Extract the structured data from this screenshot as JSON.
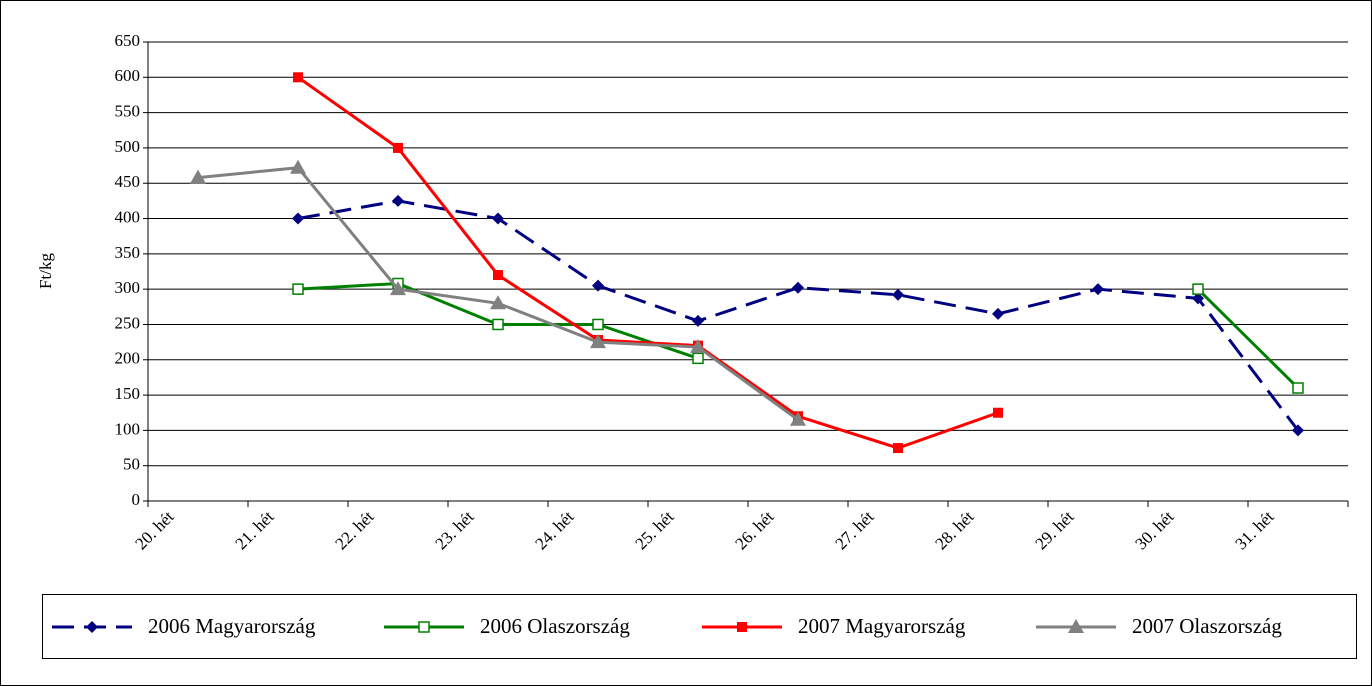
{
  "chart_data": {
    "type": "line",
    "y_label": "Ft/kg",
    "categories": [
      "20. hét",
      "21. hét",
      "22. hét",
      "23. hét",
      "24. hét",
      "25. hét",
      "26. hét",
      "27. hét",
      "28. hét",
      "29. hét",
      "30. hét",
      "31. hét"
    ],
    "series": [
      {
        "name": "2006 Magyarország",
        "color": "#000080",
        "dash": true,
        "marker": "diamond",
        "values": [
          null,
          400,
          425,
          400,
          305,
          255,
          302,
          292,
          265,
          300,
          287,
          100
        ]
      },
      {
        "name": "2006 Olaszország",
        "color": "#008000",
        "dash": false,
        "marker": "hollow-square",
        "values": [
          null,
          300,
          308,
          250,
          250,
          202,
          null,
          null,
          null,
          null,
          300,
          160
        ]
      },
      {
        "name": "2007 Magyarország",
        "color": "#ff0000",
        "dash": false,
        "marker": "square",
        "values": [
          null,
          600,
          500,
          320,
          228,
          220,
          120,
          75,
          125,
          null,
          null,
          null
        ]
      },
      {
        "name": "2007 Olaszország",
        "color": "#808080",
        "dash": false,
        "marker": "triangle",
        "values": [
          458,
          472,
          300,
          280,
          225,
          218,
          115,
          null,
          null,
          null,
          null,
          null
        ]
      }
    ],
    "ylim": [
      0,
      650
    ],
    "yticks": [
      0,
      50,
      100,
      150,
      200,
      250,
      300,
      350,
      400,
      450,
      500,
      550,
      600,
      650
    ],
    "grid": true,
    "legend": "bottom"
  }
}
